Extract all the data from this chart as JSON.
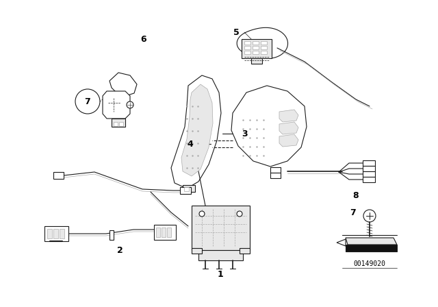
{
  "background_color": "#ffffff",
  "diagram_id": "00149020",
  "line_color": "#1a1a1a",
  "light_gray": "#e8e8e8",
  "mid_gray": "#aaaaaa",
  "lw": 0.8
}
